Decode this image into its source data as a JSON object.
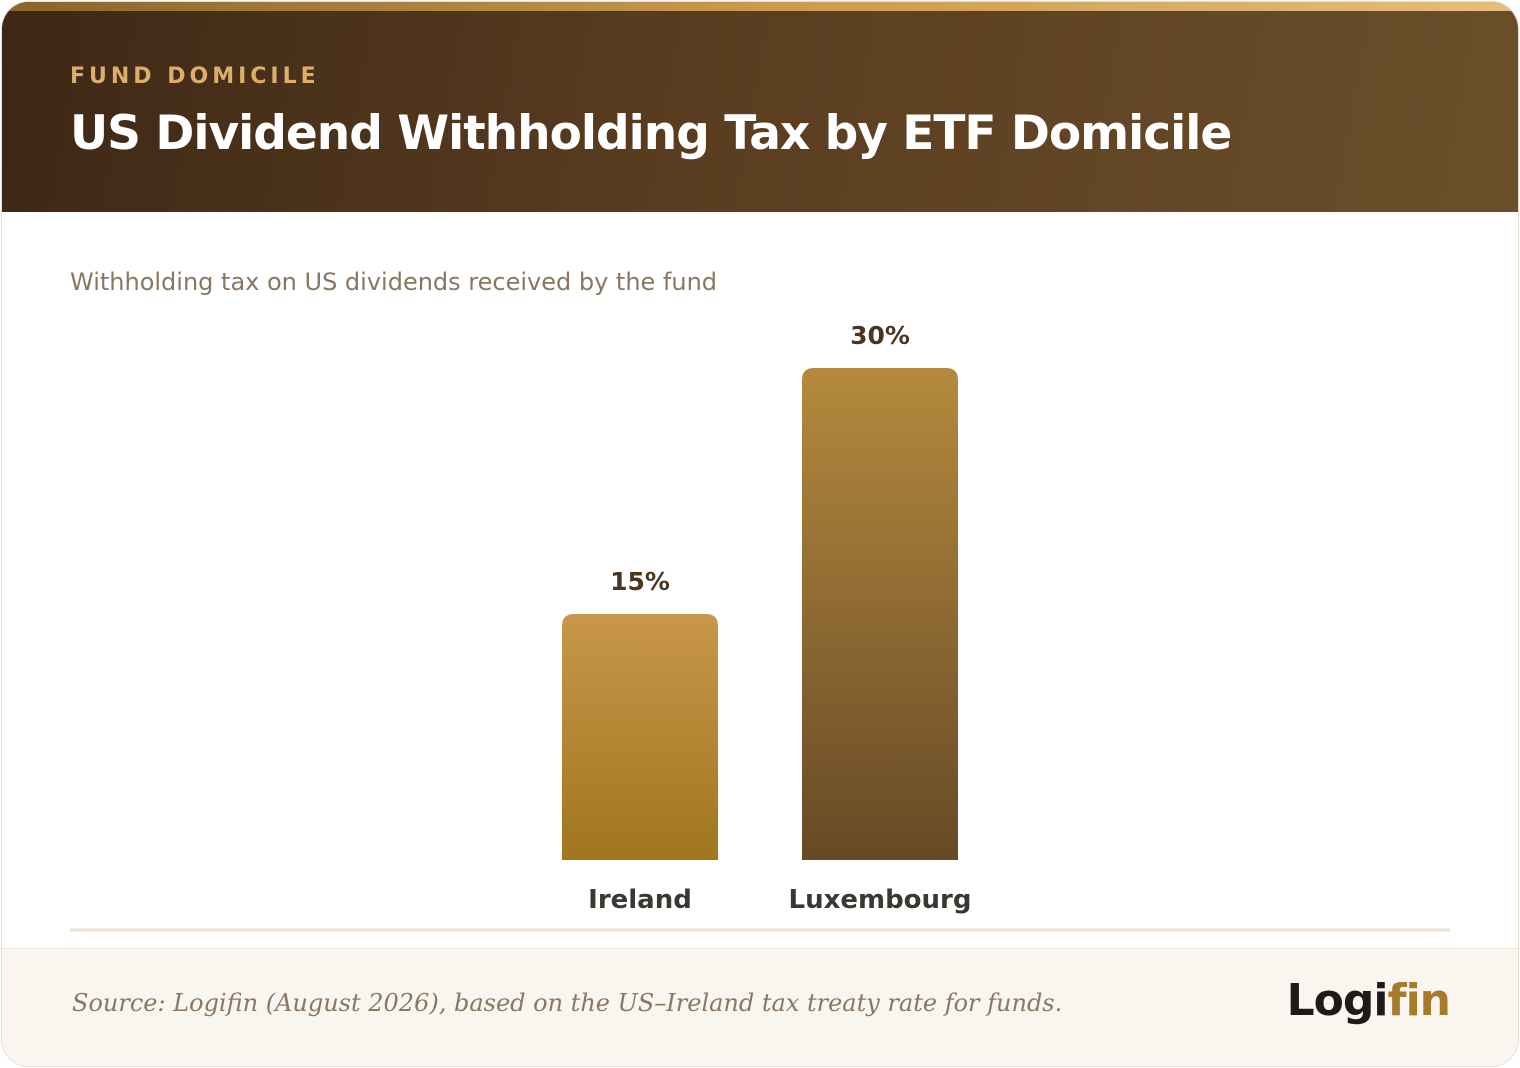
{
  "header": {
    "eyebrow": "FUND DOMICILE",
    "title": "US Dividend Withholding Tax by ETF Domicile"
  },
  "subtitle": "Withholding tax on US dividends received by the fund",
  "chart_data": {
    "type": "bar",
    "title": "US Dividend Withholding Tax by ETF Domicile",
    "subtitle": "Withholding tax on US dividends received by the fund",
    "categories": [
      "Ireland",
      "Luxembourg"
    ],
    "values": [
      15,
      30
    ],
    "value_labels": [
      "15%",
      "30%"
    ],
    "unit": "%",
    "xlabel": "",
    "ylabel": "",
    "ylim": [
      0,
      30
    ],
    "grid": false,
    "legend": "none",
    "colors": {
      "bar_1_top": "#c8974a",
      "bar_1_bottom": "#a0761e",
      "bar_2_top": "#b58a3e",
      "bar_2_bottom": "#674a26",
      "value_label": "#4a3520",
      "category_label": "#3b3733",
      "baseline": "#efe2d3"
    }
  },
  "footer": {
    "source": "Source: Logifin (August 2026), based on the US–Ireland tax treaty rate for funds.",
    "logo_part1": "Logi",
    "logo_part2": "fin"
  }
}
